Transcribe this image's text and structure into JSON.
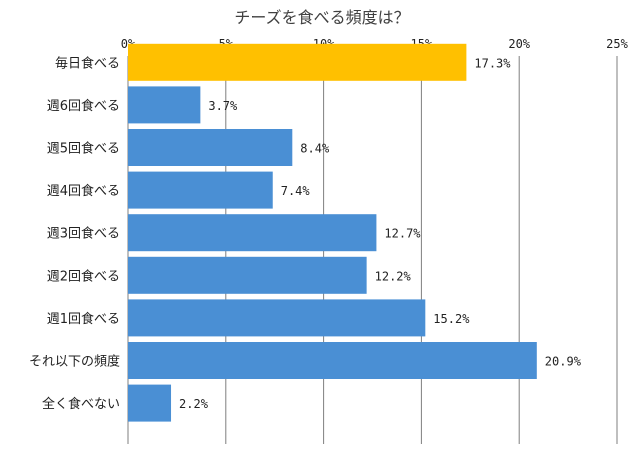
{
  "chart_data": {
    "type": "bar",
    "orientation": "horizontal",
    "title": "チーズを食べる頻度は？",
    "xlim": [
      0,
      25
    ],
    "x_ticks": [
      "0%",
      "5%",
      "10%",
      "15%",
      "20%",
      "25%"
    ],
    "categories": [
      "毎日食べる",
      "週6回食べる",
      "週5回食べる",
      "週4回食べる",
      "週3回食べる",
      "週2回食べる",
      "週1回食べる",
      "それ以下の頻度",
      "全く食べない"
    ],
    "values": [
      17.3,
      3.7,
      8.4,
      7.4,
      12.7,
      12.2,
      15.2,
      20.9,
      2.2
    ],
    "value_labels": [
      "17.3%",
      "3.7%",
      "8.4%",
      "7.4%",
      "12.7%",
      "12.2%",
      "15.2%",
      "20.9%",
      "2.2%"
    ],
    "colors": {
      "highlight": "#FFC000",
      "default": "#4A8FD4",
      "grid": "#7F7F7F"
    },
    "highlight_index": 0,
    "grid": true
  }
}
